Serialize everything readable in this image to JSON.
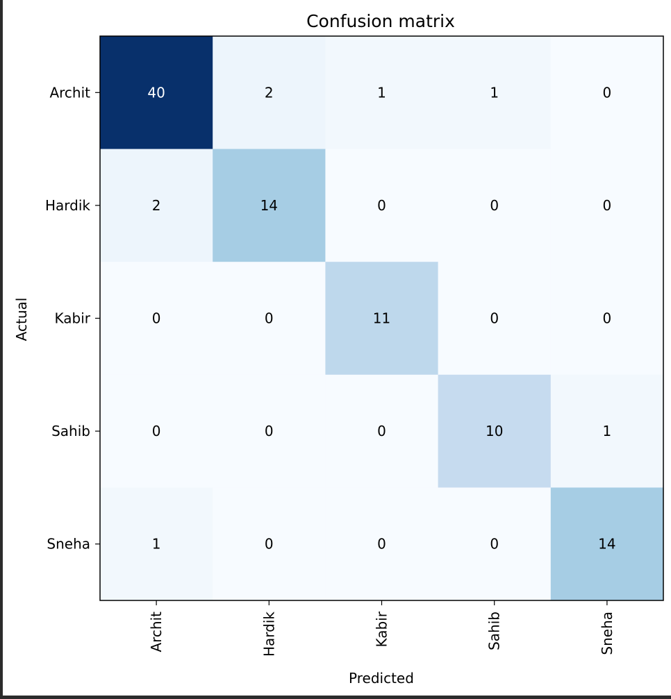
{
  "chart_data": {
    "type": "heatmap",
    "title": "Confusion matrix",
    "xlabel": "Predicted",
    "ylabel": "Actual",
    "x_categories": [
      "Archit",
      "Hardik",
      "Kabir",
      "Sahib",
      "Sneha"
    ],
    "y_categories": [
      "Archit",
      "Hardik",
      "Kabir",
      "Sahib",
      "Sneha"
    ],
    "matrix": [
      [
        40,
        2,
        1,
        1,
        0
      ],
      [
        2,
        14,
        0,
        0,
        0
      ],
      [
        0,
        0,
        11,
        0,
        0
      ],
      [
        0,
        0,
        0,
        10,
        1
      ],
      [
        1,
        0,
        0,
        0,
        14
      ]
    ],
    "colormap": "Blues",
    "vmin": 0,
    "vmax": 40,
    "grid": false
  },
  "colors": {
    "frame_outside": "#2b2b2b",
    "text_dark": "#000000",
    "text_light": "#ffffff"
  }
}
